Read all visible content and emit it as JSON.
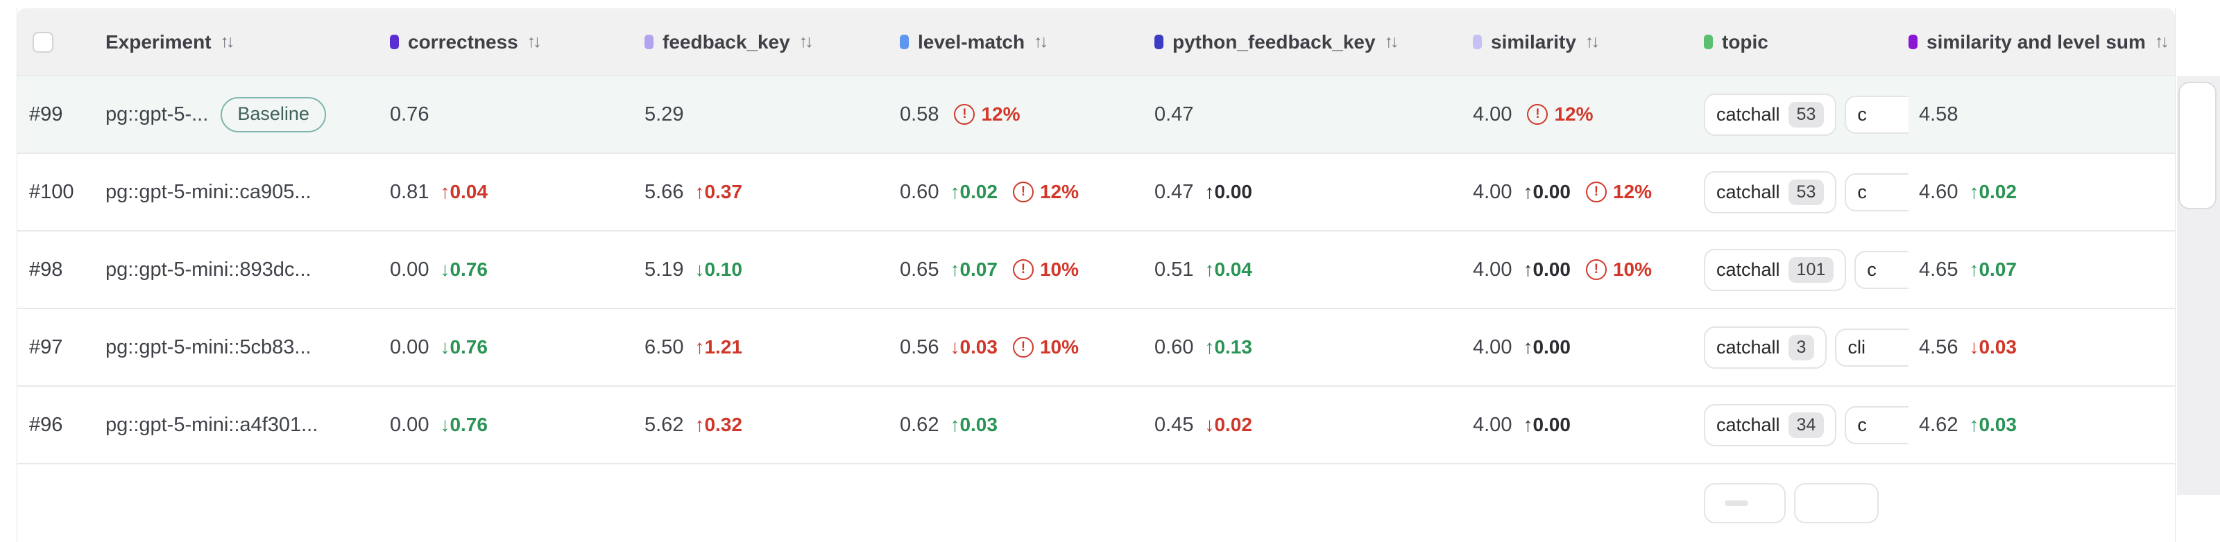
{
  "table": {
    "columns": [
      {
        "label": "Experiment",
        "sortable": true
      },
      {
        "label": "correctness",
        "dot_css": "background:#5a2ed0",
        "sortable": true
      },
      {
        "label": "feedback_key",
        "dot_css": "background:#b3a3ee",
        "sortable": true
      },
      {
        "label": "level-match",
        "dot_css": "background:#5f97f0",
        "sortable": true
      },
      {
        "label": "python_feedback_key",
        "dot_css": "background:#3b3bc4",
        "sortable": true
      },
      {
        "label": "similarity",
        "dot_css": "background:#c5c1f6",
        "sortable": true
      },
      {
        "label": "topic",
        "dot_css": "background:#5cbe70",
        "sortable": false
      },
      {
        "label": "similarity and level sum",
        "dot_css": "background:#8b16d4",
        "sortable": true
      }
    ],
    "rows": [
      {
        "id": "#99",
        "name": "pg::gpt-5-...",
        "badge": "Baseline",
        "metrics": {
          "correctness": {
            "value": "0.76"
          },
          "feedback_key": {
            "value": "5.29"
          },
          "level_match": {
            "value": "0.58",
            "warn": "12%"
          },
          "python_feedback_key": {
            "value": "0.47"
          },
          "similarity": {
            "value": "4.00",
            "warn": "12%"
          },
          "sum": {
            "value": "4.58"
          }
        },
        "topics": [
          {
            "label": "catchall",
            "count": "53"
          },
          {
            "label": "c"
          }
        ]
      },
      {
        "id": "#100",
        "name": "pg::gpt-5-mini::ca905...",
        "metrics": {
          "correctness": {
            "value": "0.81",
            "delta": "↑0.04"
          },
          "feedback_key": {
            "value": "5.66",
            "delta": "↑0.37"
          },
          "level_match": {
            "value": "0.60",
            "delta": "↑0.02",
            "warn": "12%"
          },
          "python_feedback_key": {
            "value": "0.47",
            "delta": "↑0.00"
          },
          "similarity": {
            "value": "4.00",
            "delta": "↑0.00",
            "warn": "12%"
          },
          "sum": {
            "value": "4.60",
            "delta": "↑0.02"
          }
        },
        "topics": [
          {
            "label": "catchall",
            "count": "53"
          },
          {
            "label": "c"
          }
        ]
      },
      {
        "id": "#98",
        "name": "pg::gpt-5-mini::893dc...",
        "metrics": {
          "correctness": {
            "value": "0.00",
            "delta": "↓0.76"
          },
          "feedback_key": {
            "value": "5.19",
            "delta": "↓0.10"
          },
          "level_match": {
            "value": "0.65",
            "delta": "↑0.07",
            "warn": "10%"
          },
          "python_feedback_key": {
            "value": "0.51",
            "delta": "↑0.04"
          },
          "similarity": {
            "value": "4.00",
            "delta": "↑0.00",
            "warn": "10%"
          },
          "sum": {
            "value": "4.65",
            "delta": "↑0.07"
          }
        },
        "topics": [
          {
            "label": "catchall",
            "count": "101"
          },
          {
            "label": "c"
          }
        ]
      },
      {
        "id": "#97",
        "name": "pg::gpt-5-mini::5cb83...",
        "metrics": {
          "correctness": {
            "value": "0.00",
            "delta": "↓0.76"
          },
          "feedback_key": {
            "value": "6.50",
            "delta": "↑1.21"
          },
          "level_match": {
            "value": "0.56",
            "delta": "↓0.03",
            "warn": "10%"
          },
          "python_feedback_key": {
            "value": "0.60",
            "delta": "↑0.13"
          },
          "similarity": {
            "value": "4.00",
            "delta": "↑0.00"
          },
          "sum": {
            "value": "4.56",
            "delta": "↓0.03"
          }
        },
        "topics": [
          {
            "label": "catchall",
            "count": "3"
          },
          {
            "label": "cli"
          }
        ]
      },
      {
        "id": "#96",
        "name": "pg::gpt-5-mini::a4f301...",
        "metrics": {
          "correctness": {
            "value": "0.00",
            "delta": "↓0.76"
          },
          "feedback_key": {
            "value": "5.62",
            "delta": "↑0.32"
          },
          "level_match": {
            "value": "0.62",
            "delta": "↑0.03"
          },
          "python_feedback_key": {
            "value": "0.45",
            "delta": "↓0.02"
          },
          "similarity": {
            "value": "4.00",
            "delta": "↑0.00"
          },
          "sum": {
            "value": "4.62",
            "delta": "↑0.03"
          }
        },
        "topics": [
          {
            "label": "catchall",
            "count": "34"
          },
          {
            "label": "c"
          }
        ]
      }
    ],
    "partial_row": {
      "topics": [
        {
          "label": "",
          "count": ""
        },
        {
          "label": ""
        }
      ]
    }
  }
}
